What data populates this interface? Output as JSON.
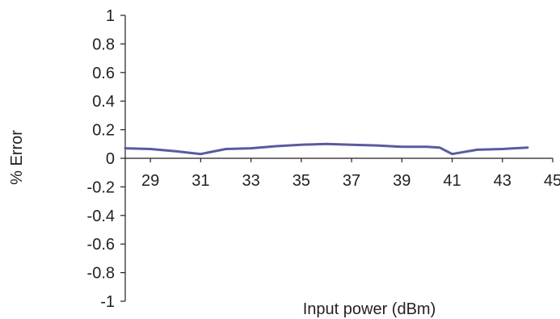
{
  "chart_data": {
    "type": "line",
    "title": "",
    "xlabel": "Input power (dBm)",
    "ylabel": "% Error",
    "xlim": [
      28,
      45
    ],
    "ylim": [
      -1,
      1
    ],
    "x_ticks": [
      29,
      31,
      33,
      35,
      37,
      39,
      41,
      43,
      45
    ],
    "y_ticks": [
      1,
      0.8,
      0.6,
      0.4,
      0.2,
      0,
      -0.2,
      -0.4,
      -0.6,
      -0.8,
      -1
    ],
    "grid": false,
    "legend": "none",
    "series": [
      {
        "color": "#5a5aa0",
        "x": [
          28,
          29,
          30,
          31,
          32,
          33,
          34,
          35,
          36,
          37,
          38,
          39,
          40,
          40.5,
          41,
          42,
          43,
          44
        ],
        "y": [
          0.07,
          0.065,
          0.05,
          0.03,
          0.065,
          0.07,
          0.085,
          0.095,
          0.1,
          0.095,
          0.09,
          0.08,
          0.08,
          0.075,
          0.03,
          0.06,
          0.065,
          0.075
        ]
      }
    ]
  }
}
